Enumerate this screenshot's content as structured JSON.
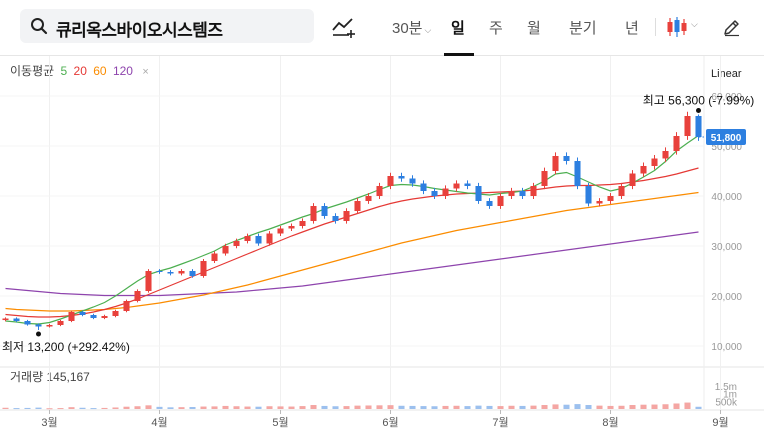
{
  "header": {
    "stock_name": "큐리옥스바이오시스템즈",
    "timeframes": [
      "30분",
      "일",
      "주",
      "월",
      "분기",
      "년"
    ],
    "active_timeframe": "일"
  },
  "legend": {
    "label": "이동평균",
    "periods": [
      "5",
      "20",
      "60",
      "120"
    ],
    "colors": [
      "#4caf50",
      "#e53935",
      "#fb8c00",
      "#8e44ad"
    ]
  },
  "scale_button": "Linear",
  "volume": {
    "label": "거래량",
    "value": "145,167"
  },
  "colors": {
    "up": "#e8413c",
    "down": "#2d7fe0",
    "current_price_bg": "#2d7fe0"
  },
  "chart_data": {
    "type": "candlestick",
    "y_ticks": [
      "60,000",
      "50,000",
      "40,000",
      "30,000",
      "20,000",
      "10,000"
    ],
    "y_tick_values": [
      60000,
      50000,
      40000,
      30000,
      20000,
      10000
    ],
    "ylim": [
      8000,
      62000
    ],
    "volume_ticks": [
      "1.5m",
      "1m",
      "500k"
    ],
    "volume_tick_values": [
      1500000,
      1000000,
      500000
    ],
    "x_month_labels": [
      "3월",
      "4월",
      "5월",
      "6월",
      "7월",
      "8월",
      "9월"
    ],
    "month_start_index": [
      4,
      14,
      25,
      35,
      45,
      55,
      65
    ],
    "current_price": 51800,
    "current_price_label": "51,800",
    "high": {
      "index": 63,
      "value": 56300,
      "label": "최고 56,300 (-7.99%)"
    },
    "low": {
      "index": 3,
      "value": 13200,
      "label": "최저 13,200 (+292.42%)"
    },
    "closes": [
      15500,
      15000,
      14300,
      13900,
      14200,
      15000,
      16800,
      16200,
      15600,
      16000,
      17000,
      19000,
      21000,
      25000,
      24800,
      24500,
      25000,
      24000,
      27000,
      28500,
      30000,
      31000,
      32000,
      30500,
      32500,
      33500,
      34000,
      35000,
      38000,
      36000,
      35000,
      37000,
      39000,
      40000,
      42000,
      44000,
      43500,
      42500,
      41000,
      40000,
      41500,
      42500,
      42000,
      39000,
      38000,
      40000,
      41000,
      40000,
      42000,
      45000,
      48000,
      47000,
      42000,
      38500,
      39000,
      40000,
      42000,
      44500,
      46000,
      47500,
      49000,
      52000,
      56000,
      51800
    ],
    "ma5": [
      15000,
      14800,
      14500,
      14400,
      14700,
      15400,
      16200,
      17000,
      17800,
      18700,
      20000,
      21500,
      23000,
      24300,
      25000,
      25600,
      26400,
      27200,
      28100,
      29000,
      30200,
      31100,
      31900,
      32700,
      33400,
      34200,
      35000,
      35800,
      36500,
      37400,
      38100,
      38800,
      39600,
      40400,
      41300,
      42100,
      42300,
      42200,
      41900,
      41500,
      41200,
      40900,
      40600,
      40400,
      40200,
      40500,
      40700,
      41000,
      41900,
      43000,
      44400,
      44700,
      43800,
      42800,
      41800,
      41000,
      41500,
      42600,
      43800,
      45100,
      46900,
      49000,
      50600,
      52100
    ],
    "ma20": [
      16300,
      16100,
      15900,
      15800,
      15800,
      15900,
      16100,
      16400,
      16800,
      17300,
      17900,
      18600,
      19400,
      20300,
      21200,
      22100,
      23000,
      23900,
      24800,
      25700,
      26600,
      27500,
      28400,
      29300,
      30200,
      31100,
      32000,
      32800,
      33600,
      34400,
      35100,
      35800,
      36500,
      37200,
      37900,
      38500,
      39000,
      39400,
      39700,
      40000,
      40200,
      40400,
      40500,
      40600,
      40700,
      40800,
      40900,
      41000,
      41200,
      41500,
      41800,
      42000,
      42100,
      42100,
      42200,
      42300,
      42500,
      42800,
      43100,
      43500,
      43900,
      44400,
      45000,
      45600
    ],
    "ma60": [
      17500,
      17300,
      17200,
      17100,
      17000,
      17000,
      17000,
      17100,
      17200,
      17300,
      17500,
      17700,
      18000,
      18300,
      18600,
      19000,
      19400,
      19800,
      20200,
      20700,
      21200,
      21700,
      22200,
      22800,
      23400,
      24000,
      24600,
      25200,
      25800,
      26400,
      27000,
      27600,
      28200,
      28800,
      29400,
      30000,
      30600,
      31100,
      31600,
      32100,
      32600,
      33100,
      33500,
      33900,
      34300,
      34700,
      35100,
      35500,
      35900,
      36300,
      36700,
      37100,
      37400,
      37700,
      38000,
      38300,
      38600,
      38900,
      39200,
      39500,
      39800,
      40100,
      40400,
      40700
    ],
    "ma120": [
      21500,
      21300,
      21100,
      20900,
      20700,
      20500,
      20400,
      20300,
      20200,
      20100,
      20100,
      20100,
      20100,
      20100,
      20100,
      20200,
      20300,
      20400,
      20500,
      20600,
      20700,
      20800,
      21000,
      21200,
      21400,
      21600,
      21800,
      22000,
      22300,
      22600,
      22900,
      23200,
      23500,
      23800,
      24100,
      24400,
      24700,
      25000,
      25300,
      25600,
      25900,
      26200,
      26500,
      26800,
      27100,
      27400,
      27700,
      28000,
      28300,
      28600,
      28900,
      29200,
      29500,
      29800,
      30100,
      30400,
      30700,
      31000,
      31300,
      31600,
      31900,
      32200,
      32500,
      32800
    ],
    "volumes": [
      80000,
      60000,
      70000,
      90000,
      50000,
      60000,
      120000,
      80000,
      60000,
      70000,
      100000,
      150000,
      180000,
      240000,
      140000,
      110000,
      120000,
      130000,
      160000,
      170000,
      200000,
      180000,
      160000,
      150000,
      180000,
      170000,
      160000,
      190000,
      260000,
      200000,
      180000,
      190000,
      220000,
      230000,
      240000,
      250000,
      210000,
      200000,
      190000,
      180000,
      200000,
      210000,
      190000,
      220000,
      200000,
      190000,
      210000,
      200000,
      220000,
      260000,
      300000,
      280000,
      320000,
      260000,
      220000,
      200000,
      210000,
      260000,
      280000,
      290000,
      310000,
      360000,
      420000,
      145167
    ]
  }
}
